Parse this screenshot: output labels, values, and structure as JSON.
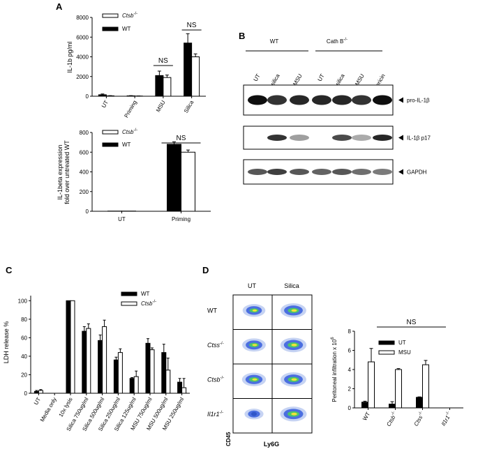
{
  "panels": {
    "A": "A",
    "B": "B",
    "C": "C",
    "D": "D"
  },
  "chart_data": [
    {
      "panel": "A-top",
      "type": "bar",
      "ylabel": "IL-1b pg/ml",
      "categories": [
        "UT",
        "Priming",
        "MSU",
        "Silica"
      ],
      "ylim": [
        0,
        8000
      ],
      "yticks": [
        "0",
        "2000",
        "4000",
        "6000",
        "8000"
      ],
      "legend": [
        "Ctsb-/-",
        "WT"
      ],
      "series": [
        {
          "name": "WT",
          "values": [
            150,
            40,
            2100,
            5400
          ],
          "errors": [
            80,
            20,
            450,
            950
          ],
          "color": "#000000"
        },
        {
          "name": "Ctsb-/-",
          "values": [
            40,
            20,
            1900,
            4000
          ],
          "errors": [
            20,
            10,
            250,
            300
          ],
          "color": "#ffffff"
        }
      ],
      "annotations": [
        "NS",
        "NS"
      ]
    },
    {
      "panel": "A-bottom",
      "type": "bar",
      "ylabel": [
        "IL-1beta expression",
        "fold over untreated WT"
      ],
      "categories": [
        "UT",
        "Priming"
      ],
      "ylim": [
        0,
        800
      ],
      "yticks": [
        "0",
        "200",
        "400",
        "600",
        "800"
      ],
      "legend": [
        "Ctsb-/-",
        "WT"
      ],
      "series": [
        {
          "name": "WT",
          "values": [
            2,
            680
          ],
          "errors": [
            0,
            25
          ],
          "color": "#000000"
        },
        {
          "name": "Ctsb-/-",
          "values": [
            2,
            600
          ],
          "errors": [
            0,
            22
          ],
          "color": "#ffffff"
        }
      ],
      "annotations": [
        "NS"
      ]
    },
    {
      "panel": "C",
      "type": "bar",
      "ylabel": "LDH release %",
      "categories": [
        "UT",
        "Media only",
        "10x lysis",
        "Silica 750ug/ml",
        "Silica 500ug/ml",
        "Silica 250ug/ml",
        "Silica 125ug/ml",
        "MSU 750ug/ml",
        "MSU 500ug/ml",
        "MSU 250ug/ml"
      ],
      "ylim": [
        0,
        110
      ],
      "yticks": [
        "0",
        "20",
        "40",
        "60",
        "80",
        "100"
      ],
      "legend": [
        "WT",
        "Ctsb-/-"
      ],
      "series": [
        {
          "name": "WT",
          "values": [
            2,
            0,
            100,
            67,
            57,
            36,
            16,
            54,
            44,
            12
          ],
          "errors": [
            1,
            0,
            0,
            5,
            6,
            3,
            1,
            5,
            9,
            4
          ],
          "color": "#000000"
        },
        {
          "name": "Ctsb-/-",
          "values": [
            3,
            0,
            100,
            70,
            72,
            44,
            18,
            47,
            25,
            6
          ],
          "errors": [
            1,
            0,
            0,
            5,
            7,
            4,
            6,
            2,
            13,
            10
          ],
          "color": "#ffffff"
        }
      ]
    },
    {
      "panel": "D-right",
      "type": "bar",
      "ylabel": "Peritoneal infiltration x 10",
      "ylabel_sup": "6",
      "categories": [
        "WT",
        "Ctsb-/-",
        "Ctss -/-",
        "Il1r1-/-"
      ],
      "ylim": [
        0,
        8
      ],
      "yticks": [
        "0",
        "2",
        "4",
        "6",
        "8"
      ],
      "legend": [
        "UT",
        "MSU"
      ],
      "series": [
        {
          "name": "UT",
          "values": [
            0.6,
            0.4,
            1.1,
            0
          ],
          "errors": [
            0.1,
            0.25,
            0.05,
            0
          ],
          "color": "#000000"
        },
        {
          "name": "MSU",
          "values": [
            4.8,
            4.0,
            4.5,
            0
          ],
          "errors": [
            1.4,
            0.1,
            0.45,
            0
          ],
          "color": "#ffffff"
        }
      ],
      "annotations": [
        "NS"
      ]
    }
  ],
  "blot": {
    "group_left": "WT",
    "group_right": "Cath B",
    "group_right_sup": "-/-",
    "lanes": [
      "UT",
      "silica",
      "MSU",
      "UT",
      "silica",
      "MSU",
      "Nigericin"
    ],
    "bands": [
      {
        "label": "pro-IL-1β",
        "intensity": [
          1,
          0.85,
          0.9,
          0.9,
          0.9,
          0.85,
          1
        ]
      },
      {
        "label": "IL-1β p17",
        "intensity": [
          0,
          0.85,
          0.4,
          0,
          0.75,
          0.35,
          0.9
        ]
      },
      {
        "label": "GAPDH",
        "intensity": [
          0.7,
          0.8,
          0.7,
          0.65,
          0.7,
          0.6,
          0.55
        ]
      }
    ]
  },
  "flow": {
    "columns": [
      "UT",
      "Silica"
    ],
    "rows": [
      {
        "label": "WT",
        "sup": ""
      },
      {
        "label": "Ctss",
        "sup": "-/-"
      },
      {
        "label": "Ctsb",
        "sup": "-/-"
      },
      {
        "label": "Il1r1",
        "sup": "-/-"
      }
    ],
    "y_axis": "CD45",
    "x_axis": "Ly6G"
  }
}
